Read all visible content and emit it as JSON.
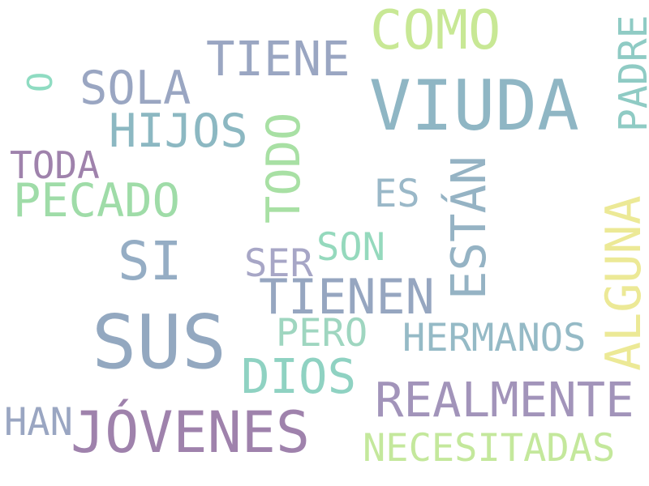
{
  "words": {
    "sus": {
      "text": "SUS",
      "color": "#93a8c0"
    },
    "viuda": {
      "text": "VIUDA",
      "color": "#8fb6c4"
    },
    "jovenes": {
      "text": "JÓVENES",
      "color": "#9f82ac"
    },
    "realmente": {
      "text": "REALMENTE",
      "color": "#a294ba"
    },
    "tienen": {
      "text": "TIENEN",
      "color": "#96a6c0"
    },
    "como": {
      "text": "COMO",
      "color": "#c8e895"
    },
    "tiene": {
      "text": "TIENE",
      "color": "#9aa6c2"
    },
    "sola": {
      "text": "SOLA",
      "color": "#9aa6c2"
    },
    "hijos": {
      "text": "HIJOS",
      "color": "#8cb8c2"
    },
    "pecado": {
      "text": "PECADO",
      "color": "#9fdca8"
    },
    "si": {
      "text": "SI",
      "color": "#95adc4"
    },
    "dios": {
      "text": "DIOS",
      "color": "#8fd2c2"
    },
    "hermanos": {
      "text": "HERMANOS",
      "color": "#95bac6"
    },
    "necesitadas": {
      "text": "NECESITADAS",
      "color": "#c4e89c"
    },
    "toda": {
      "text": "TODA",
      "color": "#9f82ac"
    },
    "han": {
      "text": "HAN",
      "color": "#9aa6c2"
    },
    "ser": {
      "text": "SER",
      "color": "#a7a6c6"
    },
    "son": {
      "text": "SON",
      "color": "#95d9bd"
    },
    "pero": {
      "text": "PERO",
      "color": "#9fd6c0"
    },
    "es": {
      "text": "ES",
      "color": "#9ab8c8"
    },
    "todo": {
      "text": "TODO",
      "color": "#a8e0a4"
    },
    "estan": {
      "text": "ESTÁN",
      "color": "#95b3c4"
    },
    "alguna": {
      "text": "ALGUNA",
      "color": "#ece996"
    },
    "padre": {
      "text": "PADRE",
      "color": "#8fcbc4"
    },
    "o": {
      "text": "O",
      "color": "#8fdcc2"
    }
  }
}
